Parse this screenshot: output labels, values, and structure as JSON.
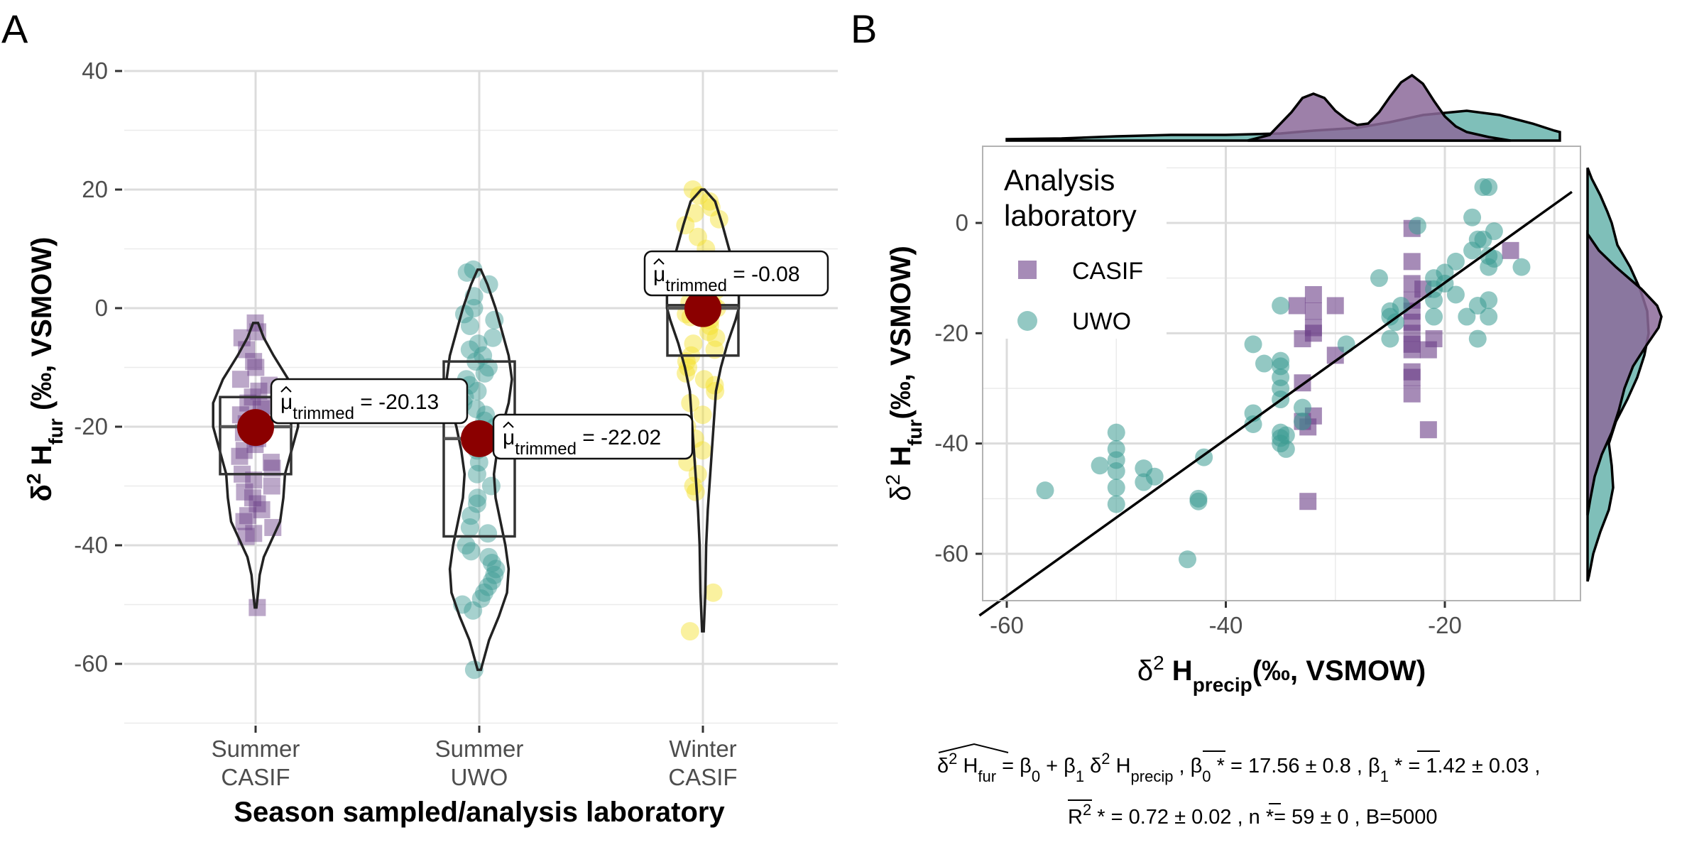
{
  "panel_a": {
    "letter": "A",
    "ylabel_parts": [
      "δ",
      "2",
      " H",
      "fur",
      " (‰, VSMOW)"
    ],
    "xlabel": "Season sampled/analysis laboratory",
    "categories": [
      [
        "Summer",
        "CASIF"
      ],
      [
        "Summer",
        "UWO"
      ],
      [
        "Winter",
        "CASIF"
      ]
    ],
    "ytick_labels": [
      "40",
      "20",
      "0",
      "-20",
      "-40",
      "-60"
    ],
    "mean_labels": [
      {
        "mu": "μ",
        "sub": "trimmed",
        "value": " = -20.13"
      },
      {
        "mu": "μ",
        "sub": "trimmed",
        "value": " = -22.02"
      },
      {
        "mu": "μ",
        "sub": "trimmed",
        "value": " = -0.08"
      }
    ]
  },
  "panel_b": {
    "letter": "B",
    "ylabel_parts": [
      "δ",
      "2",
      " H",
      "fur",
      "(‰, VSMOW)"
    ],
    "xlabel_parts": [
      "δ",
      "2",
      " H",
      "precip",
      "(‰, VSMOW)"
    ],
    "xtick_labels": [
      "-60",
      "-40",
      "-20"
    ],
    "ytick_labels": [
      "0",
      "-20",
      "-40",
      "-60"
    ],
    "legend": {
      "title_line1": "Analysis",
      "title_line2": "laboratory",
      "items": [
        "CASIF",
        "UWO"
      ]
    },
    "formula_line1": [
      {
        "t": "δ",
        "s": ""
      },
      {
        "t": "2",
        "s": "sup"
      },
      {
        "t": " H",
        "s": ""
      },
      {
        "t": "fur",
        "s": "sub"
      },
      {
        "t": " = β",
        "s": ""
      },
      {
        "t": "0",
        "s": "sub"
      },
      {
        "t": " + β",
        "s": ""
      },
      {
        "t": "1",
        "s": "sub"
      },
      {
        "t": " δ",
        "s": ""
      },
      {
        "t": "2",
        "s": "sup"
      },
      {
        "t": " H",
        "s": ""
      },
      {
        "t": "precip",
        "s": "sub"
      },
      {
        "t": " ,  β",
        "s": ""
      },
      {
        "t": "0",
        "s": "sub"
      },
      {
        "t": " * = 17.56 ± 0.8 ,  β",
        "s": ""
      },
      {
        "t": "1",
        "s": "sub"
      },
      {
        "t": " * = 1.42 ± 0.03 ,",
        "s": ""
      }
    ],
    "formula_line2": [
      {
        "t": "R",
        "s": ""
      },
      {
        "t": "2",
        "s": "sup"
      },
      {
        "t": " * = 0.72 ± 0.02 ,  n",
        "s": ""
      },
      {
        "t": " *= 59 ± 0 , B=5000",
        "s": ""
      }
    ]
  },
  "colors": {
    "casif": "#6b3d87",
    "uwo": "#3a9a92",
    "winter": "#f5e12a",
    "mean": "#8b0000",
    "density_casif": "#8c6a9a",
    "density_uwo": "#7fbfb9",
    "density_overlap": "#4f7e8a"
  },
  "chart_data": [
    {
      "type": "scatter",
      "subtype": "violin-box-jitter",
      "xlabel": "Season sampled/analysis laboratory",
      "ylabel": "δ2 Hfur (‰, VSMOW)",
      "ylim": [
        -70,
        40
      ],
      "yticks": [
        40,
        20,
        0,
        -20,
        -40,
        -60
      ],
      "grid": true,
      "categories": [
        "Summer CASIF",
        "Summer UWO",
        "Winter CASIF"
      ],
      "series": [
        {
          "category": "Summer CASIF",
          "marker": "square",
          "trimmed_mean": -20.13,
          "box": {
            "q1": -28,
            "median": -20,
            "q3": -15
          },
          "violin_range": [
            -50.5,
            -2.5
          ],
          "points": [
            -2.5,
            -4,
            -5,
            -7,
            -9,
            -10,
            -12,
            -13,
            -14,
            -15,
            -16,
            -16.5,
            -17,
            -18,
            -19,
            -19.5,
            -20,
            -21,
            -22,
            -23,
            -24,
            -25,
            -26,
            -27,
            -28,
            -29,
            -30,
            -31,
            -32,
            -33,
            -34,
            -35,
            -36,
            -37,
            -38,
            -38.5,
            -50.5
          ]
        },
        {
          "category": "Summer UWO",
          "marker": "circle",
          "trimmed_mean": -22.02,
          "box": {
            "q1": -38.5,
            "median": -22,
            "q3": -9
          },
          "violin_range": [
            -61,
            6.5
          ],
          "points": [
            6.5,
            6,
            4,
            2,
            0,
            -1,
            -2,
            -3,
            -5,
            -6,
            -7,
            -8,
            -9,
            -10,
            -11,
            -12,
            -13,
            -14,
            -15,
            -16,
            -17,
            -18,
            -19,
            -20,
            -22,
            -24,
            -26,
            -28,
            -30,
            -32,
            -33,
            -35,
            -37,
            -38,
            -40,
            -41,
            -42,
            -43,
            -44,
            -45,
            -46,
            -47,
            -48,
            -49,
            -50,
            -51,
            -61
          ]
        },
        {
          "category": "Winter CASIF",
          "marker": "circle",
          "trimmed_mean": -0.08,
          "box": {
            "q1": -8,
            "median": 0,
            "q3": 0.5
          },
          "violin_range": [
            -54.5,
            20
          ],
          "points": [
            20,
            19,
            18,
            17,
            16,
            15,
            14,
            12,
            10,
            8,
            6,
            5,
            4,
            3,
            2,
            1.5,
            1,
            0.5,
            0,
            -0.5,
            -1,
            -1.5,
            -2,
            -3,
            -4,
            -5,
            -6,
            -7,
            -8,
            -9,
            -10,
            -11,
            -12,
            -13,
            -14,
            -16,
            -18,
            -20,
            -22,
            -24,
            -26,
            -28,
            -30,
            -31,
            -48,
            -54.5
          ]
        }
      ]
    },
    {
      "type": "scatter",
      "xlabel": "δ2 Hprecip(‰, VSMOW)",
      "ylabel": "δ2 Hfur(‰, VSMOW)",
      "xlim": [
        -62.5,
        -7
      ],
      "ylim": [
        -68.5,
        13
      ],
      "xticks": [
        -60,
        -40,
        -20
      ],
      "yticks": [
        0,
        -20,
        -40,
        -60
      ],
      "grid": true,
      "legend_position": "top-left inside",
      "regression_line": {
        "intercept": 17.56,
        "slope": 1.42
      },
      "series": [
        {
          "name": "CASIF",
          "marker": "square",
          "points": [
            [
              -32.5,
              -50.5
            ],
            [
              -33,
              -29
            ],
            [
              -33,
              -36
            ],
            [
              -32.5,
              -37
            ],
            [
              -32,
              -35
            ],
            [
              -32,
              -13
            ],
            [
              -32,
              -16
            ],
            [
              -33,
              -21
            ],
            [
              -33.5,
              -15
            ],
            [
              -32,
              -19
            ],
            [
              -32,
              -20
            ],
            [
              -30,
              -24
            ],
            [
              -30,
              -15
            ],
            [
              -23,
              -1
            ],
            [
              -23,
              -7
            ],
            [
              -23,
              -11
            ],
            [
              -23,
              -14
            ],
            [
              -23,
              -16
            ],
            [
              -23,
              -18
            ],
            [
              -23,
              -20
            ],
            [
              -23,
              -22
            ],
            [
              -23,
              -23
            ],
            [
              -23,
              -27
            ],
            [
              -23,
              -28
            ],
            [
              -23,
              -31
            ],
            [
              -22,
              -12
            ],
            [
              -21.5,
              -37.5
            ],
            [
              -21.5,
              -23
            ],
            [
              -21,
              -21
            ],
            [
              -14,
              -5
            ]
          ]
        },
        {
          "name": "UWO",
          "marker": "circle",
          "points": [
            [
              -56.5,
              -48.5
            ],
            [
              -51.5,
              -44
            ],
            [
              -50,
              -38
            ],
            [
              -50,
              -41
            ],
            [
              -50,
              -43
            ],
            [
              -50,
              -45
            ],
            [
              -50,
              -48
            ],
            [
              -50,
              -51
            ],
            [
              -47.5,
              -44.5
            ],
            [
              -47.5,
              -47
            ],
            [
              -46.5,
              -46
            ],
            [
              -43.5,
              -61
            ],
            [
              -42.5,
              -50
            ],
            [
              -42.5,
              -50.5
            ],
            [
              -42,
              -42.5
            ],
            [
              -37.5,
              -34.5
            ],
            [
              -37.5,
              -36.5
            ],
            [
              -37.5,
              -22
            ],
            [
              -36.5,
              -25.5
            ],
            [
              -35,
              -15
            ],
            [
              -35,
              -25
            ],
            [
              -35,
              -26
            ],
            [
              -35,
              -28
            ],
            [
              -35,
              -30
            ],
            [
              -35,
              -32
            ],
            [
              -35,
              -38
            ],
            [
              -35,
              -39
            ],
            [
              -35,
              -40
            ],
            [
              -34.5,
              -38.5
            ],
            [
              -34.5,
              -41
            ],
            [
              -33,
              -33.5
            ],
            [
              -33,
              -36
            ],
            [
              -29,
              -22
            ],
            [
              -26,
              -10
            ],
            [
              -25,
              -16
            ],
            [
              -25,
              -17
            ],
            [
              -25,
              -21
            ],
            [
              -24.5,
              -18
            ],
            [
              -24,
              -15
            ],
            [
              -22.5,
              -0.5
            ],
            [
              -21,
              -10
            ],
            [
              -21,
              -12
            ],
            [
              -21,
              -14
            ],
            [
              -21,
              -17
            ],
            [
              -20,
              -11
            ],
            [
              -20,
              -9
            ],
            [
              -19,
              -7
            ],
            [
              -19,
              -13
            ],
            [
              -18,
              -17
            ],
            [
              -17.5,
              -5
            ],
            [
              -17.5,
              1
            ],
            [
              -17,
              -21
            ],
            [
              -17,
              -15
            ],
            [
              -16.5,
              6.5
            ],
            [
              -16.5,
              -3
            ],
            [
              -16,
              -8
            ],
            [
              -16,
              -6
            ],
            [
              -16,
              -14
            ],
            [
              -16,
              -17
            ],
            [
              -15.5,
              -1.5
            ],
            [
              -15.5,
              -6.5
            ],
            [
              -16,
              6.5
            ],
            [
              -13,
              -8
            ],
            [
              -17,
              -3
            ]
          ]
        }
      ]
    }
  ]
}
